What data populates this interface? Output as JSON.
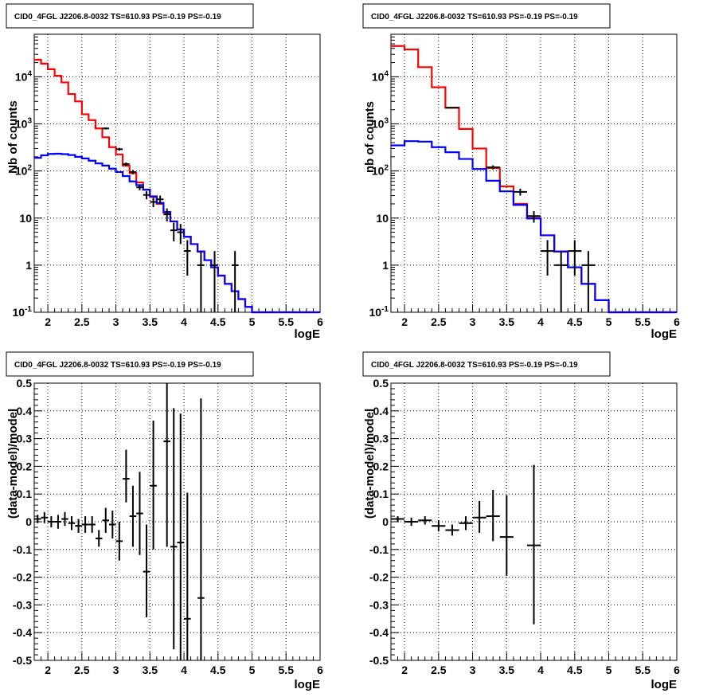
{
  "colors": {
    "model_total": "#ff0000",
    "model_background": "#0000ff",
    "data": "#000000",
    "grid": "#000000"
  },
  "chart_data": [
    {
      "id": "counts_left",
      "type": "line",
      "title": "CID0_4FGL J2206.8-0032 TS=610.93 PS=-0.19 PS=-0.19",
      "xlabel": "logE",
      "ylabel": "Nb of counts",
      "log_y": true,
      "grid": true,
      "xlim": [
        1.8,
        6
      ],
      "ylim": [
        0.1,
        80000
      ],
      "x_ticks": [
        2,
        2.5,
        3,
        3.5,
        4,
        4.5,
        5,
        5.5,
        6
      ],
      "x_tick_labels": [
        "2",
        "2.5",
        "3",
        "3.5",
        "4",
        "4.5",
        "5",
        "5.5",
        "6"
      ],
      "y_ticks": [
        0.1,
        1,
        10,
        100,
        1000,
        10000
      ],
      "y_tick_labels": [
        "10^-1",
        "1",
        "10",
        "10^2",
        "10^3",
        "10^4"
      ],
      "bin_edges": [
        1.8,
        1.9,
        2.0,
        2.1,
        2.2,
        2.3,
        2.4,
        2.5,
        2.6,
        2.7,
        2.8,
        2.9,
        3.0,
        3.1,
        3.2,
        3.3,
        3.4,
        3.5,
        3.6,
        3.7,
        3.8,
        3.9,
        4.0,
        4.1,
        4.2,
        4.3,
        4.4,
        4.5,
        4.6,
        4.7,
        4.8,
        4.9,
        5.0,
        5.1,
        5.2,
        5.3,
        5.4,
        5.5,
        5.6,
        5.7,
        5.8,
        5.9,
        6.0
      ],
      "series": [
        {
          "name": "",
          "color": "#ff0000",
          "values": [
            23000,
            19000,
            14500,
            10500,
            7600,
            4300,
            3000,
            1600,
            1200,
            800,
            520,
            320,
            225,
            130,
            90,
            57,
            40,
            28,
            20,
            13,
            8.5,
            5.7,
            4.0,
            2.8,
            1.95,
            1.28,
            0.9,
            0.6,
            0.4,
            0.28,
            0.19,
            0.13,
            0.1,
            0.1,
            0.1,
            0.1,
            0.1,
            0.1,
            0.1,
            0.1,
            0.1,
            0.1
          ]
        },
        {
          "name": "",
          "color": "#0000ff",
          "values": [
            190,
            215,
            230,
            232,
            228,
            218,
            200,
            185,
            165,
            145,
            130,
            112,
            95,
            78,
            60,
            50,
            40,
            29,
            21,
            13.5,
            8.5,
            5.7,
            4.0,
            2.8,
            1.95,
            1.28,
            0.9,
            0.6,
            0.4,
            0.28,
            0.19,
            0.13,
            0.1,
            0.1,
            0.1,
            0.1,
            0.1,
            0.1,
            0.1,
            0.1,
            0.1,
            0.1
          ]
        }
      ],
      "points": [
        {
          "x": 2.85,
          "y": 800,
          "ylo": 760,
          "yhi": 840
        },
        {
          "x": 3.05,
          "y": 290,
          "ylo": 270,
          "yhi": 310
        },
        {
          "x": 3.15,
          "y": 140,
          "ylo": 128,
          "yhi": 152
        },
        {
          "x": 3.25,
          "y": 95,
          "ylo": 85,
          "yhi": 105
        },
        {
          "x": 3.35,
          "y": 45,
          "ylo": 39,
          "yhi": 52
        },
        {
          "x": 3.45,
          "y": 31,
          "ylo": 25,
          "yhi": 37
        },
        {
          "x": 3.55,
          "y": 22,
          "ylo": 17,
          "yhi": 27
        },
        {
          "x": 3.65,
          "y": 25,
          "ylo": 20,
          "yhi": 30
        },
        {
          "x": 3.75,
          "y": 12,
          "ylo": 8.5,
          "yhi": 16
        },
        {
          "x": 3.85,
          "y": 5.5,
          "ylo": 3.2,
          "yhi": 8
        },
        {
          "x": 3.95,
          "y": 5,
          "ylo": 2.8,
          "yhi": 7.5
        },
        {
          "x": 4.05,
          "y": 2.0,
          "ylo": 0.6,
          "yhi": 3.4
        },
        {
          "x": 4.25,
          "y": 1.0,
          "ylo": 0.1,
          "yhi": 2.0
        },
        {
          "x": 4.45,
          "y": 1.0,
          "ylo": 0.1,
          "yhi": 2.0
        },
        {
          "x": 4.75,
          "y": 1.0,
          "ylo": 0.1,
          "yhi": 2.0
        }
      ]
    },
    {
      "id": "counts_right",
      "type": "line",
      "title": "CID0_4FGL J2206.8-0032 TS=610.93 PS=-0.19 PS=-0.19",
      "xlabel": "logE",
      "ylabel": "nb of counts",
      "log_y": true,
      "grid": true,
      "xlim": [
        1.8,
        6
      ],
      "ylim": [
        0.1,
        80000
      ],
      "x_ticks": [
        2,
        2.5,
        3,
        3.5,
        4,
        4.5,
        5,
        5.5,
        6
      ],
      "x_tick_labels": [
        "2",
        "2.5",
        "3",
        "3.5",
        "4",
        "4.5",
        "5",
        "5.5",
        "6"
      ],
      "y_ticks": [
        0.1,
        1,
        10,
        100,
        1000,
        10000
      ],
      "y_tick_labels": [
        "10^-1",
        "1",
        "10",
        "10^2",
        "10^3",
        "10^4"
      ],
      "bin_edges": [
        1.8,
        2.0,
        2.2,
        2.4,
        2.6,
        2.8,
        3.0,
        3.2,
        3.4,
        3.6,
        3.8,
        4.0,
        4.2,
        4.4,
        4.6,
        4.8,
        5.0,
        5.2,
        5.4,
        5.6,
        5.8,
        6.0
      ],
      "series": [
        {
          "name": "",
          "color": "#ff0000",
          "values": [
            45000,
            38000,
            16000,
            6000,
            2200,
            780,
            300,
            115,
            47,
            20,
            10,
            4.3,
            1.95,
            0.9,
            0.4,
            0.18,
            0.1,
            0.1,
            0.1,
            0.1,
            0.1
          ]
        },
        {
          "name": "",
          "color": "#0000ff",
          "values": [
            350,
            430,
            420,
            320,
            250,
            180,
            110,
            62,
            37,
            19,
            9.8,
            4.3,
            1.95,
            0.9,
            0.4,
            0.18,
            0.1,
            0.1,
            0.1,
            0.1,
            0.1
          ]
        }
      ],
      "points": [
        {
          "x": 2.7,
          "y": 2200,
          "ylo": 2130,
          "yhi": 2270
        },
        {
          "x": 3.3,
          "y": 120,
          "ylo": 108,
          "yhi": 132
        },
        {
          "x": 3.7,
          "y": 36,
          "ylo": 30,
          "yhi": 42
        },
        {
          "x": 3.9,
          "y": 11,
          "ylo": 8,
          "yhi": 14
        },
        {
          "x": 4.1,
          "y": 2.0,
          "ylo": 0.6,
          "yhi": 3.4
        },
        {
          "x": 4.3,
          "y": 1.0,
          "ylo": 0.1,
          "yhi": 2.0
        },
        {
          "x": 4.5,
          "y": 2.0,
          "ylo": 0.6,
          "yhi": 3.4
        },
        {
          "x": 4.7,
          "y": 1.0,
          "ylo": 0.1,
          "yhi": 2.0
        }
      ]
    },
    {
      "id": "resid_left",
      "type": "scatter",
      "title": "CID0_4FGL J2206.8-0032 TS=610.93 PS=-0.19 PS=-0.19",
      "xlabel": "logE",
      "ylabel": "(data-model)/model",
      "log_y": false,
      "grid": true,
      "xlim": [
        1.8,
        6
      ],
      "ylim": [
        -0.5,
        0.5
      ],
      "x_ticks": [
        2,
        2.5,
        3,
        3.5,
        4,
        4.5,
        5,
        5.5,
        6
      ],
      "x_tick_labels": [
        "2",
        "2.5",
        "3",
        "3.5",
        "4",
        "4.5",
        "5",
        "5.5",
        "6"
      ],
      "y_ticks": [
        -0.5,
        -0.4,
        -0.3,
        -0.2,
        -0.1,
        0,
        0.1,
        0.2,
        0.3,
        0.4,
        0.5
      ],
      "y_tick_labels": [
        "-0.5",
        "-0.4",
        "-0.3",
        "-0.2",
        "-0.1",
        "0",
        "0.1",
        "0.2",
        "0.3",
        "0.4",
        "0.5"
      ],
      "bin_halfwidth": 0.05,
      "points": [
        {
          "x": 1.85,
          "y": 0.01,
          "ylo": -0.005,
          "yhi": 0.025
        },
        {
          "x": 1.95,
          "y": 0.015,
          "ylo": -0.005,
          "yhi": 0.035
        },
        {
          "x": 2.05,
          "y": 0.0,
          "ylo": -0.02,
          "yhi": 0.02
        },
        {
          "x": 2.15,
          "y": 0.0,
          "ylo": -0.025,
          "yhi": 0.025
        },
        {
          "x": 2.25,
          "y": 0.01,
          "ylo": -0.015,
          "yhi": 0.035
        },
        {
          "x": 2.35,
          "y": -0.005,
          "ylo": -0.03,
          "yhi": 0.02
        },
        {
          "x": 2.45,
          "y": -0.015,
          "ylo": -0.04,
          "yhi": 0.01
        },
        {
          "x": 2.55,
          "y": -0.01,
          "ylo": -0.04,
          "yhi": 0.02
        },
        {
          "x": 2.65,
          "y": -0.01,
          "ylo": -0.04,
          "yhi": 0.02
        },
        {
          "x": 2.75,
          "y": -0.06,
          "ylo": -0.09,
          "yhi": -0.03
        },
        {
          "x": 2.85,
          "y": 0.005,
          "ylo": -0.04,
          "yhi": 0.05
        },
        {
          "x": 2.95,
          "y": -0.01,
          "ylo": -0.06,
          "yhi": 0.04
        },
        {
          "x": 3.05,
          "y": -0.07,
          "ylo": -0.14,
          "yhi": 0.0
        },
        {
          "x": 3.15,
          "y": 0.155,
          "ylo": 0.07,
          "yhi": 0.26
        },
        {
          "x": 3.25,
          "y": 0.02,
          "ylo": -0.09,
          "yhi": 0.13
        },
        {
          "x": 3.35,
          "y": 0.03,
          "ylo": -0.12,
          "yhi": 0.18
        },
        {
          "x": 3.45,
          "y": -0.18,
          "ylo": -0.345,
          "yhi": -0.01
        },
        {
          "x": 3.55,
          "y": 0.13,
          "ylo": -0.1,
          "yhi": 0.365
        },
        {
          "x": 3.75,
          "y": 0.29,
          "ylo": -0.09,
          "yhi": 0.5
        },
        {
          "x": 3.85,
          "y": -0.09,
          "ylo": -0.46,
          "yhi": 0.41
        },
        {
          "x": 3.95,
          "y": -0.075,
          "ylo": -0.5,
          "yhi": 0.39
        },
        {
          "x": 4.05,
          "y": -0.35,
          "ylo": -0.5,
          "yhi": 0.105
        },
        {
          "x": 4.25,
          "y": -0.275,
          "ylo": -0.5,
          "yhi": 0.445
        }
      ]
    },
    {
      "id": "resid_right",
      "type": "scatter",
      "title": "CID0_4FGL J2206.8-0032 TS=610.93 PS=-0.19 PS=-0.19",
      "xlabel": "logE",
      "ylabel": "(data-model)/model",
      "log_y": false,
      "grid": true,
      "xlim": [
        1.8,
        6
      ],
      "ylim": [
        -0.5,
        0.5
      ],
      "x_ticks": [
        2,
        2.5,
        3,
        3.5,
        4,
        4.5,
        5,
        5.5,
        6
      ],
      "x_tick_labels": [
        "2",
        "2.5",
        "3",
        "3.5",
        "4",
        "4.5",
        "5",
        "5.5",
        "6"
      ],
      "y_ticks": [
        -0.5,
        -0.4,
        -0.3,
        -0.2,
        -0.1,
        0,
        0.1,
        0.2,
        0.3,
        0.4,
        0.5
      ],
      "y_tick_labels": [
        "-0.5",
        "-0.4",
        "-0.3",
        "-0.2",
        "-0.1",
        "0",
        "0.1",
        "0.2",
        "0.3",
        "0.4",
        "0.5"
      ],
      "bin_halfwidth": 0.1,
      "points": [
        {
          "x": 1.9,
          "y": 0.01,
          "ylo": 0.0,
          "yhi": 0.02
        },
        {
          "x": 2.1,
          "y": 0.0,
          "ylo": -0.015,
          "yhi": 0.015
        },
        {
          "x": 2.3,
          "y": 0.005,
          "ylo": -0.01,
          "yhi": 0.02
        },
        {
          "x": 2.5,
          "y": -0.015,
          "ylo": -0.035,
          "yhi": 0.005
        },
        {
          "x": 2.7,
          "y": -0.03,
          "ylo": -0.05,
          "yhi": -0.01
        },
        {
          "x": 2.9,
          "y": -0.005,
          "ylo": -0.03,
          "yhi": 0.02
        },
        {
          "x": 3.1,
          "y": 0.015,
          "ylo": -0.04,
          "yhi": 0.075
        },
        {
          "x": 3.3,
          "y": 0.02,
          "ylo": -0.07,
          "yhi": 0.115
        },
        {
          "x": 3.5,
          "y": -0.055,
          "ylo": -0.195,
          "yhi": 0.095
        },
        {
          "x": 3.9,
          "y": -0.085,
          "ylo": -0.37,
          "yhi": 0.205
        }
      ]
    }
  ]
}
